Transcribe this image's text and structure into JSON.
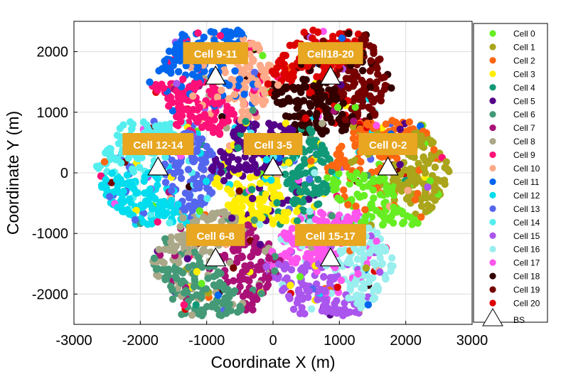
{
  "chart_data": {
    "type": "scatter",
    "xlabel": "Coordinate X (m)",
    "ylabel": "Coordinate Y (m)",
    "xlim": [
      -3000,
      3000
    ],
    "ylim": [
      -2500,
      2500
    ],
    "xticks": [
      -3000,
      -2000,
      -1000,
      0,
      1000,
      2000,
      3000
    ],
    "yticks": [
      -2000,
      -1000,
      0,
      1000,
      2000
    ],
    "xtick_labels": [
      "-3000",
      "-2000",
      "-1000",
      "0",
      "1000",
      "2000",
      "3000"
    ],
    "ytick_labels": [
      "-2000",
      "-1000",
      "0",
      "1000",
      "2000"
    ],
    "grid": true,
    "legend_position": "right",
    "series": [
      {
        "name": "Cell 0",
        "color": "#66ee22"
      },
      {
        "name": "Cell 1",
        "color": "#aaa51a"
      },
      {
        "name": "Cell 2",
        "color": "#ff6611"
      },
      {
        "name": "Cell 3",
        "color": "#ffee00"
      },
      {
        "name": "Cell 4",
        "color": "#119977"
      },
      {
        "name": "Cell 5",
        "color": "#550088"
      },
      {
        "name": "Cell 6",
        "color": "#449977"
      },
      {
        "name": "Cell 7",
        "color": "#aa1177"
      },
      {
        "name": "Cell 8",
        "color": "#aaa888"
      },
      {
        "name": "Cell 9",
        "color": "#ff1177"
      },
      {
        "name": "Cell 10",
        "color": "#ffaa88"
      },
      {
        "name": "Cell 11",
        "color": "#0066ee"
      },
      {
        "name": "Cell 12",
        "color": "#00ddee"
      },
      {
        "name": "Cell 13",
        "color": "#5566ee"
      },
      {
        "name": "Cell 14",
        "color": "#55eeee"
      },
      {
        "name": "Cell 15",
        "color": "#aa55ee"
      },
      {
        "name": "Cell 16",
        "color": "#99eeee"
      },
      {
        "name": "Cell 17",
        "color": "#ff55ee"
      },
      {
        "name": "Cell 18",
        "color": "#330000"
      },
      {
        "name": "Cell 19",
        "color": "#770000"
      },
      {
        "name": "Cell 20",
        "color": "#dd0000"
      }
    ],
    "bs_legend_label": "BS",
    "base_stations": [
      {
        "label": "Cell 0-2",
        "x": 1732,
        "y": 0
      },
      {
        "label": "Cell 3-5",
        "x": 0,
        "y": 0
      },
      {
        "label": "Cell 6-8",
        "x": -866,
        "y": -1500
      },
      {
        "label": "Cell 9-11",
        "x": -866,
        "y": 1500
      },
      {
        "label": "Cell 12-14",
        "x": -1732,
        "y": 0
      },
      {
        "label": "Cell 15-17",
        "x": 866,
        "y": -1500
      },
      {
        "label": "Cell18-20",
        "x": 866,
        "y": 1500
      }
    ],
    "label_color": "#e8a621"
  }
}
